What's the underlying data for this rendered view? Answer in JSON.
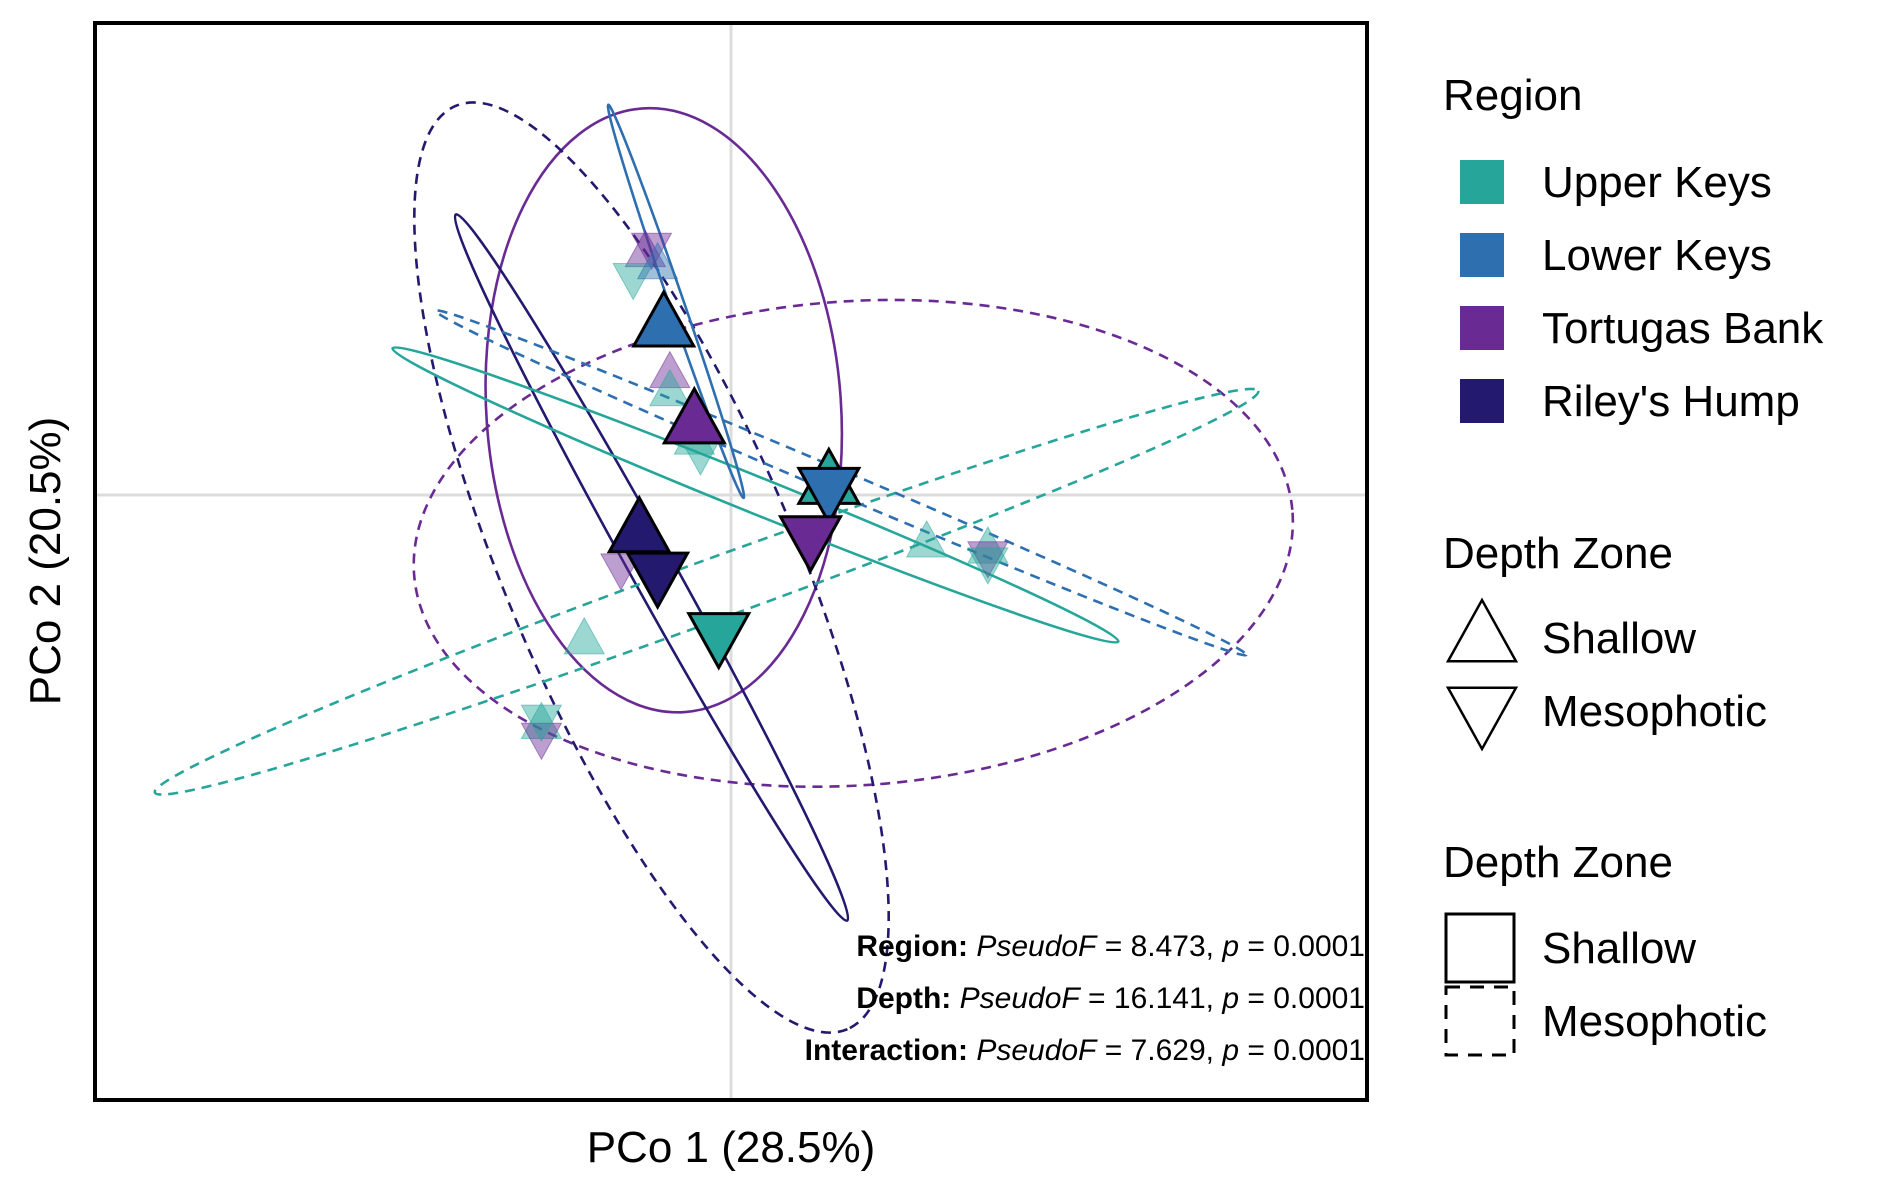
{
  "chart_data": {
    "type": "scatter",
    "xlabel": "PCo 1 (28.5%)",
    "ylabel": "PCo 2 (20.5%)",
    "xlim": [
      -0.52,
      0.52
    ],
    "ylim": [
      -0.5,
      0.39
    ],
    "zero_lines": true,
    "grid": false,
    "colors": {
      "Upper Keys": "#26a69a",
      "Lower Keys": "#2e6fb0",
      "Tortugas Bank": "#6a2a94",
      "Riley's Hump": "#23196e"
    },
    "legend_region": {
      "title": "Region",
      "items": [
        "Upper Keys",
        "Lower Keys",
        "Tortugas Bank",
        "Riley's Hump"
      ]
    },
    "legend_shape": {
      "title": "Depth Zone",
      "items": [
        {
          "label": "Shallow",
          "shape": "triangle-up"
        },
        {
          "label": "Mesophotic",
          "shape": "triangle-down"
        }
      ]
    },
    "legend_linetype": {
      "title": "Depth Zone",
      "items": [
        {
          "label": "Shallow",
          "linetype": "solid"
        },
        {
          "label": "Mesophotic",
          "linetype": "dashed"
        }
      ]
    },
    "centroids": [
      {
        "region": "Lower Keys",
        "depth": "Shallow",
        "x": -0.055,
        "y": 0.14
      },
      {
        "region": "Tortugas Bank",
        "depth": "Shallow",
        "x": -0.03,
        "y": 0.06
      },
      {
        "region": "Upper Keys",
        "depth": "Shallow",
        "x": 0.08,
        "y": 0.01
      },
      {
        "region": "Riley's Hump",
        "depth": "Shallow",
        "x": -0.075,
        "y": -0.03
      },
      {
        "region": "Lower Keys",
        "depth": "Mesophotic",
        "x": 0.08,
        "y": 0.005
      },
      {
        "region": "Tortugas Bank",
        "depth": "Mesophotic",
        "x": 0.065,
        "y": -0.035
      },
      {
        "region": "Riley's Hump",
        "depth": "Mesophotic",
        "x": -0.06,
        "y": -0.065
      },
      {
        "region": "Upper Keys",
        "depth": "Mesophotic",
        "x": -0.01,
        "y": -0.115
      }
    ],
    "sample_points": [
      {
        "region": "Tortugas Bank",
        "depth": "Shallow",
        "x": -0.07,
        "y": 0.2
      },
      {
        "region": "Tortugas Bank",
        "depth": "Mesophotic",
        "x": -0.065,
        "y": 0.205
      },
      {
        "region": "Upper Keys",
        "depth": "Mesophotic",
        "x": -0.08,
        "y": 0.18
      },
      {
        "region": "Lower Keys",
        "depth": "Shallow",
        "x": -0.06,
        "y": 0.19
      },
      {
        "region": "Tortugas Bank",
        "depth": "Shallow",
        "x": -0.05,
        "y": 0.1
      },
      {
        "region": "Upper Keys",
        "depth": "Shallow",
        "x": -0.05,
        "y": 0.085
      },
      {
        "region": "Upper Keys",
        "depth": "Shallow",
        "x": -0.03,
        "y": 0.045
      },
      {
        "region": "Upper Keys",
        "depth": "Mesophotic",
        "x": -0.025,
        "y": 0.035
      },
      {
        "region": "Upper Keys",
        "depth": "Shallow",
        "x": 0.21,
        "y": -0.045
      },
      {
        "region": "Tortugas Bank",
        "depth": "Mesophotic",
        "x": 0.21,
        "y": -0.05
      },
      {
        "region": "Upper Keys",
        "depth": "Mesophotic",
        "x": 0.21,
        "y": -0.055
      },
      {
        "region": "Upper Keys",
        "depth": "Shallow",
        "x": 0.16,
        "y": -0.04
      },
      {
        "region": "Upper Keys",
        "depth": "Shallow",
        "x": -0.155,
        "y": -0.19
      },
      {
        "region": "Tortugas Bank",
        "depth": "Mesophotic",
        "x": -0.155,
        "y": -0.2
      },
      {
        "region": "Upper Keys",
        "depth": "Mesophotic",
        "x": -0.155,
        "y": -0.185
      },
      {
        "region": "Tortugas Bank",
        "depth": "Mesophotic",
        "x": -0.09,
        "y": -0.06
      },
      {
        "region": "Upper Keys",
        "depth": "Shallow",
        "x": -0.12,
        "y": -0.12
      }
    ],
    "ellipses": [
      {
        "region": "Tortugas Bank",
        "depth": "Shallow",
        "cx": -0.055,
        "cy": 0.07,
        "rx": 0.145,
        "ry": 0.25,
        "angle_deg": 4
      },
      {
        "region": "Tortugas Bank",
        "depth": "Mesophotic",
        "cx": 0.1,
        "cy": -0.04,
        "rx": 0.36,
        "ry": 0.2,
        "angle_deg": 4
      },
      {
        "region": "Riley's Hump",
        "depth": "Shallow",
        "cx": -0.065,
        "cy": -0.06,
        "rx": 0.33,
        "ry": 0.018,
        "angle_deg": -61
      },
      {
        "region": "Riley's Hump",
        "depth": "Mesophotic",
        "cx": -0.065,
        "cy": -0.06,
        "rx": 0.41,
        "ry": 0.12,
        "angle_deg": -67
      },
      {
        "region": "Upper Keys",
        "depth": "Shallow",
        "cx": 0.02,
        "cy": 0.0,
        "rx": 0.32,
        "ry": 0.015,
        "angle_deg": -22
      },
      {
        "region": "Upper Keys",
        "depth": "Mesophotic",
        "cx": -0.02,
        "cy": -0.08,
        "rx": 0.48,
        "ry": 0.025,
        "angle_deg": 20
      },
      {
        "region": "Lower Keys",
        "depth": "Shallow",
        "cx": -0.045,
        "cy": 0.16,
        "rx": 0.17,
        "ry": 0.006,
        "angle_deg": -71
      },
      {
        "region": "Lower Keys",
        "depth": "Mesophotic",
        "cx": 0.09,
        "cy": 0.01,
        "rx": 0.36,
        "ry": 0.01,
        "angle_deg": -23
      }
    ]
  },
  "stats": [
    {
      "label": "Region:",
      "stat": "PseudoF",
      "eq1": " = ",
      "value": "8.473",
      "comma": ", ",
      "p": "p",
      "eq2": " = ",
      "pvalue": "0.0001"
    },
    {
      "label": "Depth:",
      "stat": "PseudoF",
      "eq1": " = ",
      "value": "16.141",
      "comma": ", ",
      "p": "p",
      "eq2": " = ",
      "pvalue": "0.0001"
    },
    {
      "label": "Interaction:",
      "stat": "PseudoF",
      "eq1": " = ",
      "value": "7.629",
      "comma": ", ",
      "p": "p",
      "eq2": " = ",
      "pvalue": "0.0001"
    }
  ]
}
